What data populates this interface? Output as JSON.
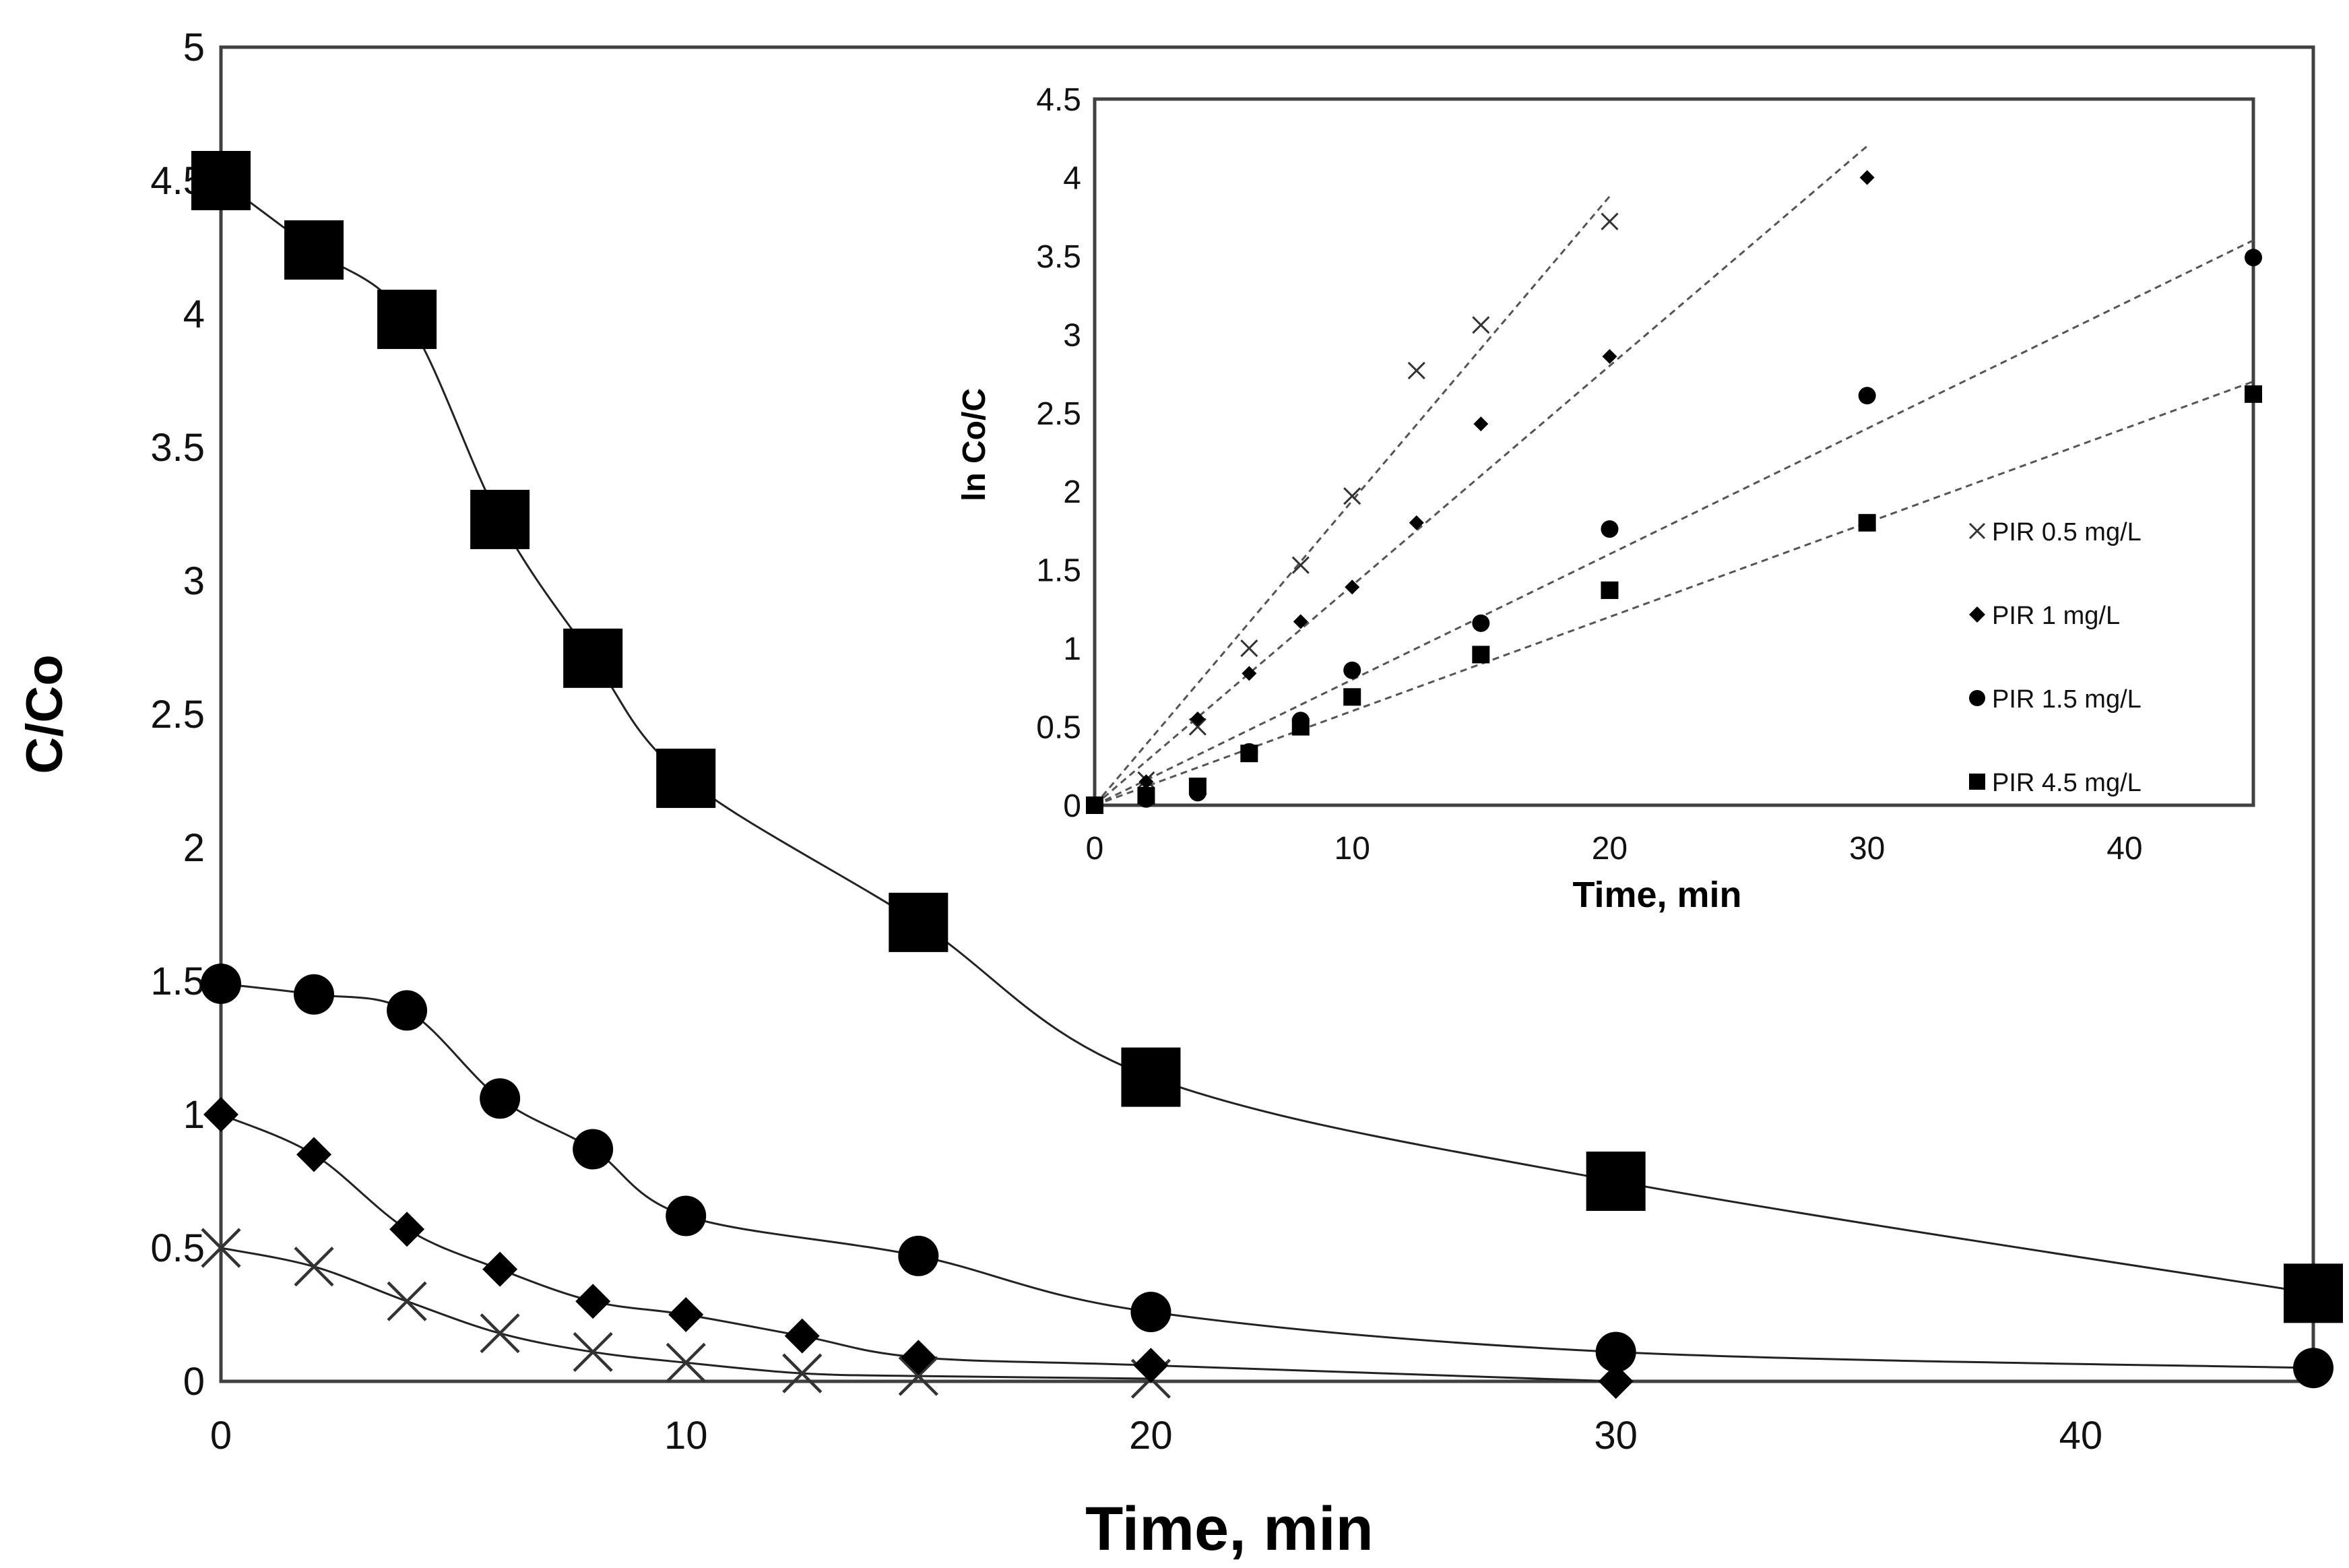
{
  "chart_data": [
    {
      "type": "line",
      "role": "main",
      "title": "",
      "xlabel": "Time, min",
      "ylabel": "C/Co",
      "xlim": [
        0,
        45
      ],
      "ylim": [
        0,
        5
      ],
      "xticks": [
        0,
        10,
        20,
        30,
        40
      ],
      "yticks": [
        0,
        0.5,
        1,
        1.5,
        2,
        2.5,
        3,
        3.5,
        4,
        4.5,
        5
      ],
      "grid": false,
      "series": [
        {
          "name": "PIR 0.5 mg/L",
          "marker": "x",
          "x": [
            0,
            2,
            4,
            6,
            8,
            10,
            12.5,
            15,
            20
          ],
          "y": [
            0.5,
            0.43,
            0.3,
            0.18,
            0.11,
            0.07,
            0.03,
            0.02,
            0.01
          ]
        },
        {
          "name": "PIR 1 mg/L",
          "marker": "diamond",
          "x": [
            0,
            2,
            4,
            6,
            8,
            10,
            12.5,
            15,
            20,
            30
          ],
          "y": [
            1.0,
            0.85,
            0.57,
            0.42,
            0.3,
            0.25,
            0.17,
            0.09,
            0.06,
            0.0
          ]
        },
        {
          "name": "PIR 1.5 mg/L",
          "marker": "circle",
          "x": [
            0,
            2,
            4,
            6,
            8,
            10,
            15,
            20,
            30,
            45
          ],
          "y": [
            1.49,
            1.45,
            1.39,
            1.06,
            0.87,
            0.62,
            0.47,
            0.26,
            0.11,
            0.05
          ]
        },
        {
          "name": "PIR 4.5 mg/L",
          "marker": "square",
          "x": [
            0,
            2,
            4,
            6,
            8,
            10,
            15,
            20,
            30,
            45
          ],
          "y": [
            4.5,
            4.24,
            3.98,
            3.23,
            2.71,
            2.26,
            1.72,
            1.14,
            0.75,
            0.33
          ]
        }
      ]
    },
    {
      "type": "scatter",
      "role": "inset",
      "xlabel": "Time, min",
      "ylabel": "ln Co/C",
      "xlim": [
        0,
        45
      ],
      "ylim": [
        0,
        4.5
      ],
      "xticks": [
        0,
        10,
        20,
        30,
        40
      ],
      "yticks": [
        0,
        0.5,
        1,
        1.5,
        2,
        2.5,
        3,
        3.5,
        4,
        4.5
      ],
      "legend_position": "right",
      "series": [
        {
          "name": "PIR 0.5 mg/L",
          "marker": "x",
          "x": [
            0,
            2,
            4,
            6,
            8,
            10,
            12.5,
            15,
            20
          ],
          "y": [
            0,
            0.16,
            0.5,
            1.0,
            1.53,
            1.97,
            2.77,
            3.06,
            3.72
          ],
          "trendline": {
            "x": [
              0,
              20
            ],
            "y": [
              0,
              3.88
            ]
          }
        },
        {
          "name": "PIR 1 mg/L",
          "marker": "diamond",
          "x": [
            0,
            2,
            4,
            6,
            8,
            10,
            12.5,
            15,
            20,
            30
          ],
          "y": [
            0,
            0.15,
            0.55,
            0.84,
            1.17,
            1.39,
            1.8,
            2.43,
            2.86,
            4.0
          ],
          "trendline": {
            "x": [
              0,
              30
            ],
            "y": [
              0,
              4.2
            ]
          }
        },
        {
          "name": "PIR 1.5 mg/L",
          "marker": "circle",
          "x": [
            0,
            2,
            4,
            6,
            8,
            10,
            15,
            20,
            30,
            45
          ],
          "y": [
            0,
            0.04,
            0.08,
            0.34,
            0.54,
            0.86,
            1.16,
            1.76,
            2.61,
            3.49
          ],
          "trendline": {
            "x": [
              0,
              45
            ],
            "y": [
              0,
              3.6
            ]
          }
        },
        {
          "name": "PIR 4.5 mg/L",
          "marker": "square",
          "x": [
            0,
            2,
            4,
            6,
            8,
            10,
            15,
            20,
            30,
            45
          ],
          "y": [
            0,
            0.06,
            0.12,
            0.33,
            0.5,
            0.69,
            0.96,
            1.37,
            1.8,
            2.62
          ],
          "trendline": {
            "x": [
              0,
              45
            ],
            "y": [
              0,
              2.7
            ]
          }
        }
      ]
    }
  ],
  "legend": {
    "items": [
      "PIR 0.5 mg/L",
      "PIR 1 mg/L",
      "PIR 1.5 mg/L",
      "PIR 4.5 mg/L"
    ]
  },
  "colors": {
    "ink": "#000000",
    "frame": "#404040",
    "trend": "#555555"
  }
}
